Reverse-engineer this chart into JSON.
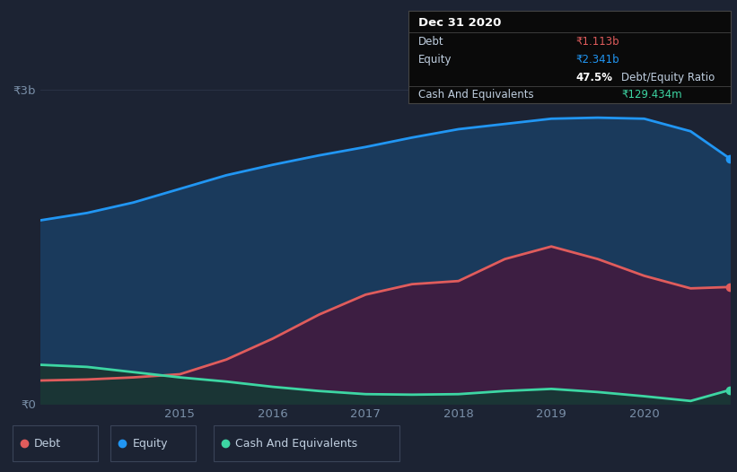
{
  "background_color": "#1c2333",
  "plot_bg_color": "#1c2333",
  "x_years": [
    2013.5,
    2014.0,
    2014.5,
    2015.0,
    2015.5,
    2016.0,
    2016.5,
    2017.0,
    2017.5,
    2018.0,
    2018.5,
    2019.0,
    2019.5,
    2020.0,
    2020.5,
    2020.92
  ],
  "equity": [
    1.75,
    1.82,
    1.92,
    2.05,
    2.18,
    2.28,
    2.37,
    2.45,
    2.54,
    2.62,
    2.67,
    2.72,
    2.73,
    2.72,
    2.6,
    2.341
  ],
  "debt": [
    0.22,
    0.23,
    0.25,
    0.28,
    0.42,
    0.62,
    0.85,
    1.04,
    1.14,
    1.17,
    1.38,
    1.5,
    1.38,
    1.22,
    1.1,
    1.113
  ],
  "cash": [
    0.37,
    0.35,
    0.3,
    0.25,
    0.21,
    0.16,
    0.12,
    0.09,
    0.085,
    0.09,
    0.12,
    0.14,
    0.11,
    0.07,
    0.025,
    0.129
  ],
  "equity_color": "#2196f3",
  "equity_fill": "#1a3a5c",
  "debt_color": "#e05c5c",
  "debt_fill": "#3d1e42",
  "cash_color": "#3dd6a3",
  "cash_fill": "#1a3535",
  "grid_color": "#2a3245",
  "tick_color": "#7a8fa8",
  "text_color": "#c0cfe0",
  "ylim": [
    0,
    3.2
  ],
  "xtick_positions": [
    2015.0,
    2016.0,
    2017.0,
    2018.0,
    2019.0,
    2020.0
  ],
  "xtick_labels": [
    "2015",
    "2016",
    "2017",
    "2018",
    "2019",
    "2020"
  ],
  "tooltip_bg": "#0a0a0a",
  "tooltip_title": "Dec 31 2020",
  "tooltip_debt_label": "Debt",
  "tooltip_debt_value": "₹1.113b",
  "tooltip_equity_label": "Equity",
  "tooltip_equity_value": "₹2.341b",
  "tooltip_ratio": "47.5%",
  "tooltip_ratio_label": "Debt/Equity Ratio",
  "tooltip_cash_label": "Cash And Equivalents",
  "tooltip_cash_value": "₹129.434m",
  "legend_items": [
    "Debt",
    "Equity",
    "Cash And Equivalents"
  ],
  "legend_colors": [
    "#e05c5c",
    "#2196f3",
    "#3dd6a3"
  ],
  "legend_bg": "#252d3d",
  "legend_border": "#3a4458"
}
